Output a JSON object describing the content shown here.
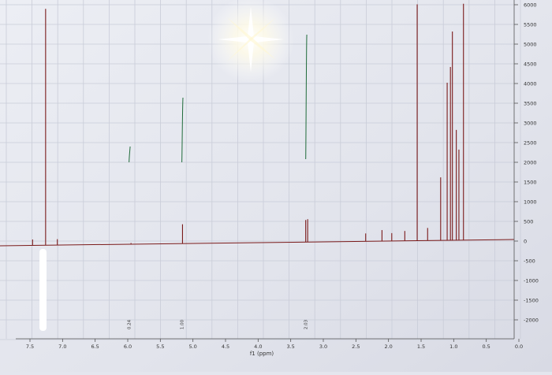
{
  "chart_data": {
    "type": "line",
    "title": "",
    "xlabel": "f1 (ppm)",
    "ylabel": "",
    "xlim": [
      7.65,
      -0.1
    ],
    "ylim": [
      -2500,
      6000
    ],
    "x_reversed": true,
    "grid": true,
    "x_ticks": [
      "7.5",
      "7.0",
      "6.5",
      "6.0",
      "5.5",
      "5.0",
      "4.5",
      "4.0",
      "3.5",
      "3.0",
      "2.5",
      "2.0",
      "1.5",
      "1.0",
      "0.5",
      "0.0"
    ],
    "y_ticks": [
      "6000",
      "5500",
      "5000",
      "4500",
      "4000",
      "3500",
      "3000",
      "2500",
      "2000",
      "1500",
      "1000",
      "500",
      "0",
      "-500",
      "-1000",
      "-1500",
      "-2000"
    ],
    "integrals": [
      {
        "label": "0.24",
        "from": 5.98,
        "to": 5.95
      },
      {
        "label": "1.00",
        "from": 5.17,
        "to": 5.15
      },
      {
        "label": "2.03",
        "from": 3.27,
        "to": 3.25
      }
    ],
    "peaks": [
      {
        "ppm": 7.26,
        "intensity": 6000
      },
      {
        "ppm": 7.46,
        "intensity": 150
      },
      {
        "ppm": 7.08,
        "intensity": 150
      },
      {
        "ppm": 5.95,
        "intensity": 30
      },
      {
        "ppm": 5.16,
        "intensity": 490
      },
      {
        "ppm": 3.27,
        "intensity": 560
      },
      {
        "ppm": 3.24,
        "intensity": 580
      },
      {
        "ppm": 2.35,
        "intensity": 200
      },
      {
        "ppm": 2.1,
        "intensity": 280
      },
      {
        "ppm": 1.95,
        "intensity": 200
      },
      {
        "ppm": 1.75,
        "intensity": 250
      },
      {
        "ppm": 1.56,
        "intensity": 6000
      },
      {
        "ppm": 1.4,
        "intensity": 320
      },
      {
        "ppm": 1.2,
        "intensity": 1600
      },
      {
        "ppm": 1.1,
        "intensity": 4000
      },
      {
        "ppm": 1.05,
        "intensity": 4400
      },
      {
        "ppm": 1.02,
        "intensity": 5300
      },
      {
        "ppm": 0.96,
        "intensity": 2800
      },
      {
        "ppm": 0.92,
        "intensity": 2300
      },
      {
        "ppm": 0.85,
        "intensity": 6000
      }
    ]
  }
}
